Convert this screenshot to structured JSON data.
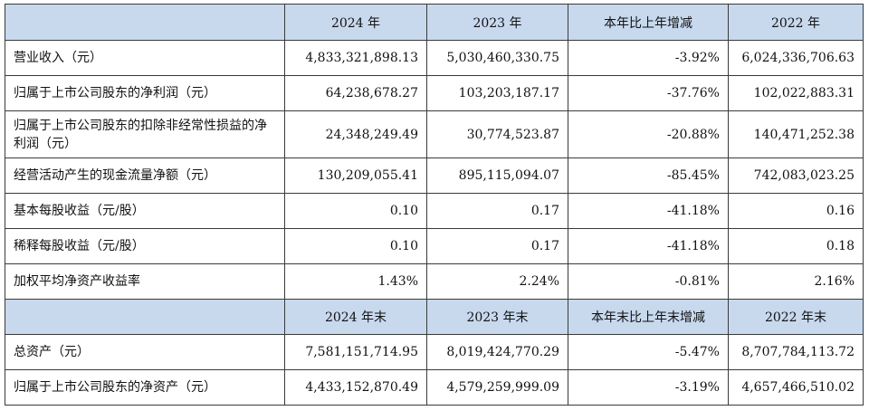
{
  "header_top": {
    "blank": "",
    "cols": [
      "2024 年",
      "2023 年",
      "本年比上年增减",
      "2022 年"
    ]
  },
  "rows_top": [
    {
      "label": "营业收入（元）",
      "values": [
        "4,833,321,898.13",
        "5,030,460,330.75",
        "-3.92%",
        "6,024,336,706.63"
      ]
    },
    {
      "label": "归属于上市公司股东的净利润（元）",
      "values": [
        "64,238,678.27",
        "103,203,187.17",
        "-37.76%",
        "102,022,883.31"
      ]
    },
    {
      "label": "归属于上市公司股东的扣除非经常性损益的净利润（元）",
      "values": [
        "24,348,249.49",
        "30,774,523.87",
        "-20.88%",
        "140,471,252.38"
      ]
    },
    {
      "label": "经营活动产生的现金流量净额（元）",
      "values": [
        "130,209,055.41",
        "895,115,094.07",
        "-85.45%",
        "742,083,023.25"
      ]
    },
    {
      "label": "基本每股收益（元/股）",
      "values": [
        "0.10",
        "0.17",
        "-41.18%",
        "0.16"
      ]
    },
    {
      "label": "稀释每股收益（元/股）",
      "values": [
        "0.10",
        "0.17",
        "-41.18%",
        "0.18"
      ]
    },
    {
      "label": "加权平均净资产收益率",
      "values": [
        "1.43%",
        "2.24%",
        "-0.81%",
        "2.16%"
      ]
    }
  ],
  "header_bottom": {
    "blank": "",
    "cols": [
      "2024 年末",
      "2023 年末",
      "本年末比上年末增减",
      "2022 年末"
    ]
  },
  "rows_bottom": [
    {
      "label": "总资产（元）",
      "values": [
        "7,581,151,714.95",
        "8,019,424,770.29",
        "-5.47%",
        "8,707,784,113.72"
      ]
    },
    {
      "label": "归属于上市公司股东的净资产（元）",
      "values": [
        "4,433,152,870.49",
        "4,579,259,999.09",
        "-3.19%",
        "4,657,466,510.02"
      ]
    }
  ]
}
